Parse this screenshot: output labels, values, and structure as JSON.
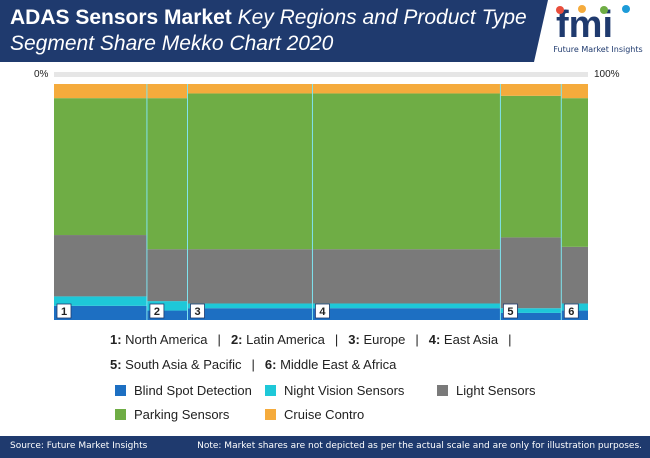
{
  "header": {
    "title_bold": "ADAS Sensors Market",
    "title_rest": " Key Regions and Product Type Segment Share Mekko Chart 2020"
  },
  "logo": {
    "mark": "fmi",
    "caption": "Future Market Insights"
  },
  "axis": {
    "left_label": "0%",
    "right_label": "100%"
  },
  "chart_data": {
    "type": "bar",
    "variant": "mekko",
    "title": "ADAS Sensors Market Key Regions and Product Type Segment Share Mekko Chart 2020",
    "x_scale": [
      0,
      100
    ],
    "categories": [
      "1",
      "2",
      "3",
      "4",
      "5",
      "6"
    ],
    "category_names": [
      "North America",
      "Latin America",
      "Europe",
      "East Asia",
      "South Asia & Pacific",
      "Middle East & Africa"
    ],
    "region_widths": [
      17.4,
      7.6,
      23.4,
      35.2,
      11.4,
      5.0
    ],
    "series": [
      {
        "name": "Blind Spot Detection",
        "color": "#1d6fc2",
        "values": [
          6,
          4,
          5,
          5,
          3,
          4
        ]
      },
      {
        "name": "Night Vision Sensors",
        "color": "#1ec8d8",
        "values": [
          4,
          4,
          2,
          2,
          2,
          3
        ]
      },
      {
        "name": "Light Sensors",
        "color": "#7a7a7a",
        "values": [
          26,
          22,
          23,
          23,
          30,
          24
        ]
      },
      {
        "name": "Parking Sensors",
        "color": "#6fad45",
        "values": [
          58,
          64,
          66,
          66,
          60,
          63
        ]
      },
      {
        "name": "Cruise Contro",
        "color": "#f5ab3c",
        "values": [
          6,
          6,
          4,
          4,
          5,
          6
        ]
      }
    ],
    "ylim": [
      0,
      100
    ],
    "grid": false,
    "legend": "bottom"
  },
  "legend": {
    "regions_line1": [
      {
        "num": "1:",
        "name": "North America"
      },
      {
        "num": "2:",
        "name": "Latin America"
      },
      {
        "num": "3:",
        "name": "Europe"
      },
      {
        "num": "4:",
        "name": "East Asia"
      }
    ],
    "regions_line2": [
      {
        "num": "5:",
        "name": "South Asia & Pacific"
      },
      {
        "num": "6:",
        "name": "Middle East & Africa"
      }
    ],
    "separator": "|"
  },
  "footer": {
    "source": "Source: Future Market Insights",
    "note": "Note: Market shares are not depicted as per the actual scale and are only for illustration purposes."
  }
}
